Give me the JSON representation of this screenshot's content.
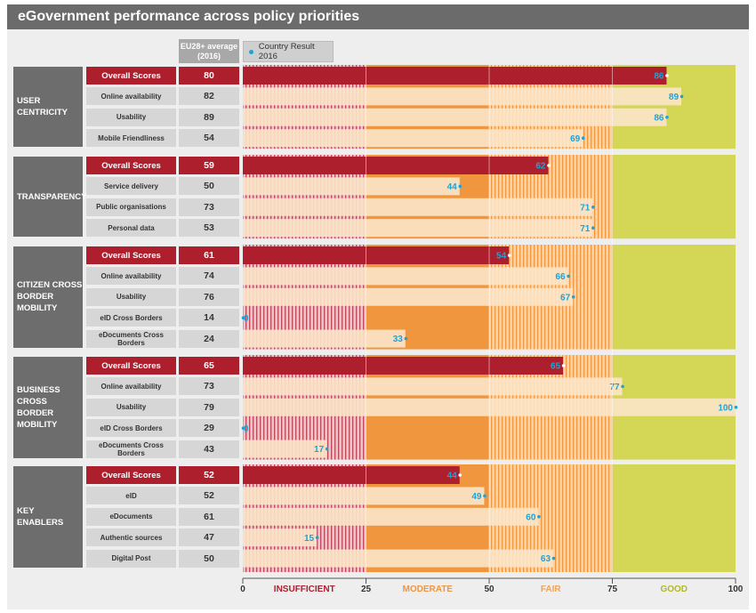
{
  "title": "eGovernment performance across policy priorities",
  "header": {
    "avg_label": "EU28+ average (2016)",
    "legend_label": "Country Result 2016"
  },
  "colors": {
    "insufficient": "#e8c3c8",
    "moderate": "#f0963f",
    "fair": "#f8d2a5",
    "good": "#d4d655",
    "bar_overall": "#ae1f2e",
    "bar_other": "#fbe4c8",
    "dot": "#1fa3d6",
    "value_text": "#1fa3d6"
  },
  "chart_data": {
    "type": "bar",
    "orientation": "horizontal",
    "xlim": [
      0,
      100
    ],
    "x_ticks": [
      0,
      25,
      50,
      75,
      100
    ],
    "bands": [
      {
        "label": "INSUFFICIENT",
        "from": 0,
        "to": 25
      },
      {
        "label": "MODERATE",
        "from": 25,
        "to": 50
      },
      {
        "label": "FAIR",
        "from": 50,
        "to": 75
      },
      {
        "label": "GOOD",
        "from": 75,
        "to": 100
      }
    ],
    "series_name": "Country Result 2016",
    "groups": [
      {
        "name": "USER CENTRICITY",
        "rows": [
          {
            "label": "Overall Scores",
            "avg": 80,
            "value": 86,
            "overall": true
          },
          {
            "label": "Online availability",
            "avg": 82,
            "value": 89
          },
          {
            "label": "Usability",
            "avg": 89,
            "value": 86
          },
          {
            "label": "Mobile Friendliness",
            "avg": 54,
            "value": 69
          }
        ]
      },
      {
        "name": "TRANSPARENCY",
        "rows": [
          {
            "label": "Overall Scores",
            "avg": 59,
            "value": 62,
            "overall": true
          },
          {
            "label": "Service delivery",
            "avg": 50,
            "value": 44
          },
          {
            "label": "Public organisations",
            "avg": 73,
            "value": 71
          },
          {
            "label": "Personal data",
            "avg": 53,
            "value": 71
          }
        ]
      },
      {
        "name": "CITIZEN CROSS BORDER MOBILITY",
        "rows": [
          {
            "label": "Overall Scores",
            "avg": 61,
            "value": 54,
            "overall": true
          },
          {
            "label": "Online availability",
            "avg": 74,
            "value": 66
          },
          {
            "label": "Usability",
            "avg": 76,
            "value": 67
          },
          {
            "label": "eID Cross Borders",
            "avg": 14,
            "value": 0
          },
          {
            "label": "eDocuments Cross Borders",
            "avg": 24,
            "value": 33
          }
        ]
      },
      {
        "name": "BUSINESS CROSS BORDER MOBILITY",
        "rows": [
          {
            "label": "Overall Scores",
            "avg": 65,
            "value": 65,
            "overall": true
          },
          {
            "label": "Online availability",
            "avg": 73,
            "value": 77
          },
          {
            "label": "Usability",
            "avg": 79,
            "value": 100
          },
          {
            "label": "eID Cross Borders",
            "avg": 29,
            "value": 0
          },
          {
            "label": "eDocuments Cross Borders",
            "avg": 43,
            "value": 17
          }
        ]
      },
      {
        "name": "KEY ENABLERS",
        "rows": [
          {
            "label": "Overall Scores",
            "avg": 52,
            "value": 44,
            "overall": true
          },
          {
            "label": "eID",
            "avg": 52,
            "value": 49
          },
          {
            "label": "eDocuments",
            "avg": 61,
            "value": 60
          },
          {
            "label": "Authentic sources",
            "avg": 47,
            "value": 15
          },
          {
            "label": "Digital Post",
            "avg": 50,
            "value": 63
          }
        ]
      }
    ]
  }
}
